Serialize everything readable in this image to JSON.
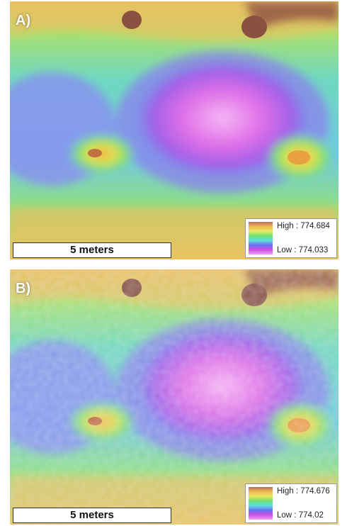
{
  "panels": [
    {
      "label": "A)",
      "scale_bar": "5 meters",
      "legend": {
        "high": "High : 774.684",
        "low": "Low : 774.033"
      }
    },
    {
      "label": "B)",
      "scale_bar": "5 meters",
      "legend": {
        "high": "High : 774.676",
        "low": "Low : 774.02"
      }
    }
  ]
}
